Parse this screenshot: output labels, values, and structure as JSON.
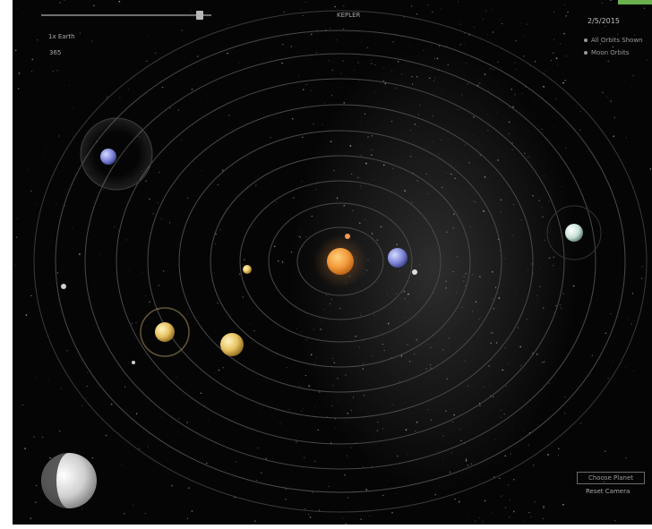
{
  "top_title": "KEPLER",
  "speed": {
    "label": "1x Earth",
    "value": "365",
    "fraction": 0.93
  },
  "date": "2/5/2015",
  "options": [
    {
      "label": "All Orbits Shown",
      "active": true
    },
    {
      "label": "Moon Orbits",
      "active": false
    }
  ],
  "buttons": {
    "primary": "Choose Planet",
    "secondary": "Reset Camera"
  },
  "colors": {
    "background": "#050505",
    "accent": "#6ab04c",
    "sun": "#f29a3c",
    "text": "#a8a8a8"
  }
}
